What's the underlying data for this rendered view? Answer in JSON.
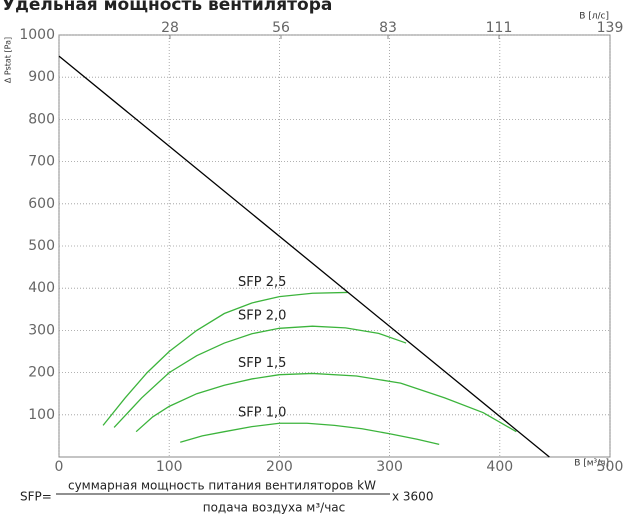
{
  "chart_data": {
    "type": "line",
    "title": "Удельная мощность вентилятора",
    "ylabel": "Δ Pstat [Pa]",
    "xlabel": "В [м³/ч]",
    "x2label": "В [л/с]",
    "xlim": [
      0,
      500
    ],
    "xticks": [
      0,
      100,
      200,
      300,
      400,
      500
    ],
    "x2lim": [
      0,
      139
    ],
    "x2ticks": [
      28,
      56,
      83,
      111,
      139
    ],
    "ylim": [
      0,
      1000
    ],
    "yticks": [
      100,
      200,
      300,
      400,
      500,
      600,
      700,
      800,
      900,
      1000
    ],
    "grid": true,
    "fan_line": {
      "color": "#000000",
      "x": [
        0,
        445
      ],
      "values": [
        950,
        0
      ]
    },
    "series": [
      {
        "name": "SFP 2,5",
        "color": "#3cb43c",
        "x": [
          40,
          60,
          80,
          100,
          125,
          150,
          175,
          200,
          230,
          262
        ],
        "values": [
          75,
          140,
          200,
          250,
          300,
          340,
          365,
          380,
          388,
          390
        ]
      },
      {
        "name": "SFP 2,0",
        "color": "#3cb43c",
        "x": [
          50,
          75,
          100,
          125,
          150,
          175,
          200,
          230,
          260,
          290,
          315
        ],
        "values": [
          70,
          140,
          200,
          240,
          270,
          292,
          305,
          310,
          306,
          293,
          270
        ]
      },
      {
        "name": "SFP 1,5",
        "color": "#3cb43c",
        "x": [
          70,
          85,
          100,
          125,
          150,
          175,
          200,
          230,
          270,
          310,
          350,
          385,
          415
        ],
        "values": [
          60,
          95,
          120,
          150,
          170,
          185,
          195,
          198,
          192,
          175,
          140,
          105,
          60
        ]
      },
      {
        "name": "SFP 1,0",
        "color": "#3cb43c",
        "x": [
          110,
          130,
          150,
          175,
          200,
          225,
          250,
          275,
          300,
          325,
          345
        ],
        "values": [
          35,
          50,
          60,
          72,
          80,
          80,
          75,
          67,
          55,
          42,
          30
        ]
      }
    ]
  },
  "formula": {
    "lhs": "SFP=",
    "numerator": "суммарная мощность питания вентиляторов kW",
    "denominator": "подача воздуха м³/час",
    "factor": "x 3600"
  }
}
